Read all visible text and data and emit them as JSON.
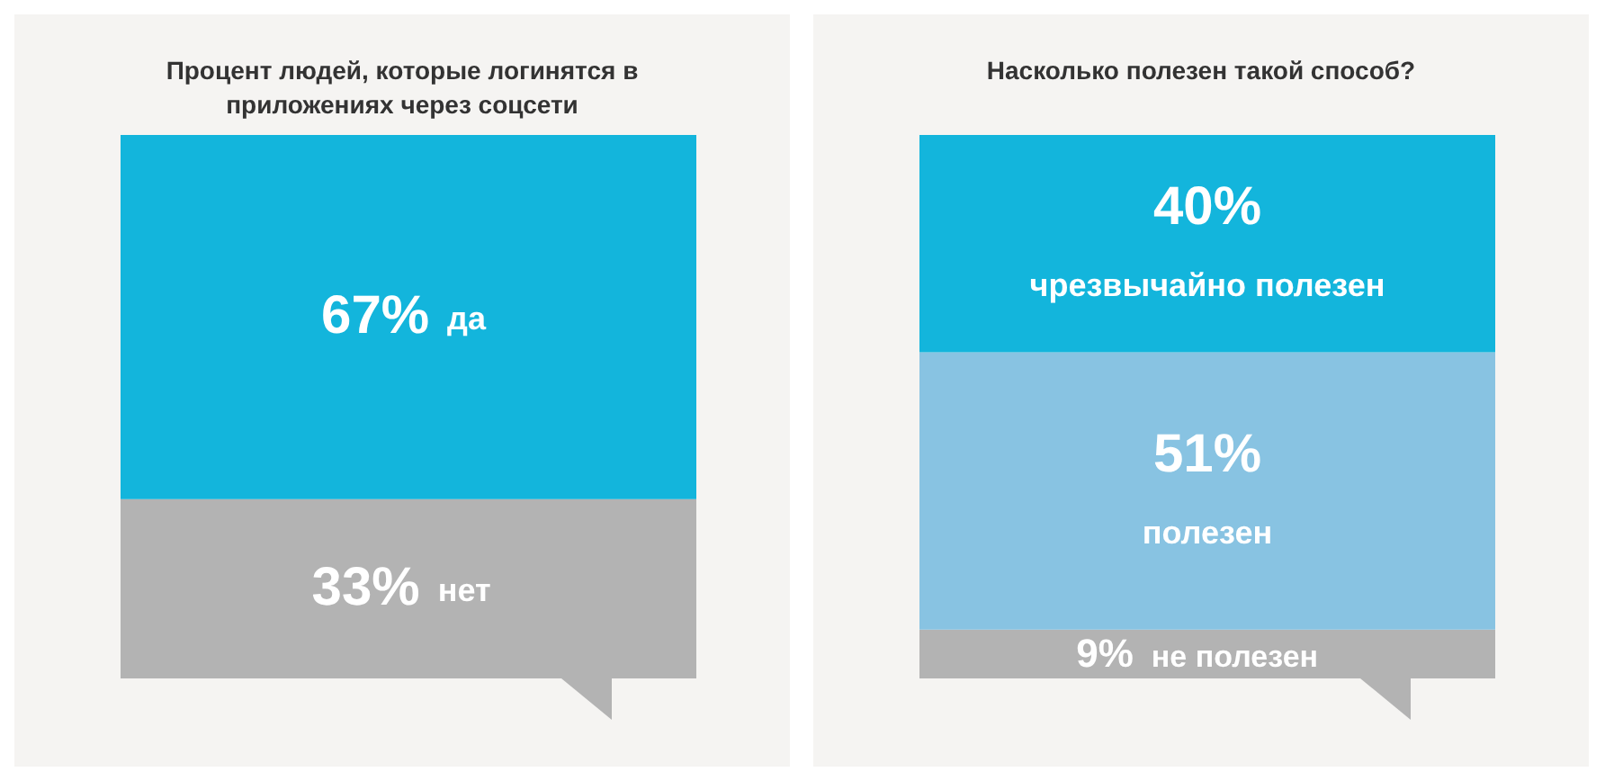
{
  "chart_data": [
    {
      "type": "bar",
      "title": "Процент людей, которые логинятся в приложениях через соцсети",
      "stacked": true,
      "categories": [
        null
      ],
      "series": [
        {
          "name": "нет",
          "color": "#b3b3b3",
          "values": [
            33
          ],
          "value_labels": [
            "33%"
          ]
        },
        {
          "name": "да",
          "color": "#13b5dc",
          "values": [
            67
          ],
          "value_labels": [
            "67%"
          ]
        }
      ]
    },
    {
      "type": "bar",
      "title": "Насколько полезен такой способ?",
      "stacked": true,
      "categories": [
        null
      ],
      "series": [
        {
          "name": "не полезен",
          "color": "#b3b3b3",
          "values": [
            9
          ],
          "value_labels": [
            "9%"
          ]
        },
        {
          "name": "полезен",
          "color": "#88c3e2",
          "values": [
            51
          ],
          "value_labels": [
            "51%"
          ]
        },
        {
          "name": "чрезвычайно полезен",
          "color": "#13b5dc",
          "values": [
            40
          ],
          "value_labels": [
            "40%"
          ]
        }
      ]
    }
  ]
}
